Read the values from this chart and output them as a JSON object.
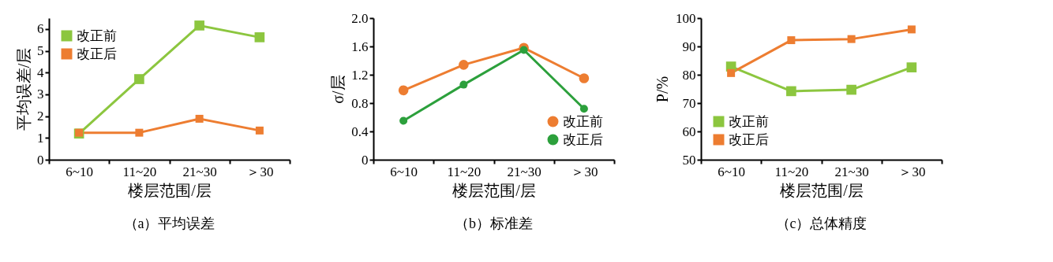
{
  "chart_data": [
    {
      "type": "line",
      "title": "（a）平均误差",
      "xlabel": "楼层范围/层",
      "ylabel": "平均误差/层",
      "categories": [
        "6~10",
        "11~20",
        "21~30",
        "＞30"
      ],
      "ylim": [
        0,
        6.5
      ],
      "yticks": [
        0,
        1,
        2,
        3,
        4,
        5,
        6
      ],
      "legend": "top left",
      "marker": "square",
      "series": [
        {
          "name": "改正前",
          "color": "#8cc63f",
          "values": [
            1.2,
            3.7,
            6.16,
            5.62
          ]
        },
        {
          "name": "改正后",
          "color": "#ed7d31",
          "values": [
            1.24,
            1.24,
            1.88,
            1.34
          ]
        }
      ]
    },
    {
      "type": "line",
      "title": "（b）标准差",
      "xlabel": "楼层范围/层",
      "ylabel": "σ/层",
      "categories": [
        "6~10",
        "11~20",
        "21~30",
        "＞30"
      ],
      "ylim": [
        0,
        2.0
      ],
      "yticks": [
        0,
        0.4,
        0.8,
        1.2,
        1.6,
        {
          "value": 2,
          "label": "2.0"
        }
      ],
      "legend": "bottom right",
      "marker": "circle",
      "series": [
        {
          "name": "改正前",
          "color": "#ed7d31",
          "values": [
            0.98,
            1.34,
            1.58,
            1.15
          ]
        },
        {
          "name": "改正后",
          "color": "#2ca03c",
          "values": [
            0.55,
            1.06,
            1.55,
            0.72
          ]
        }
      ]
    },
    {
      "type": "line",
      "title": "（c）总体精度",
      "xlabel": "楼层范围/层",
      "ylabel": "P/%",
      "categories": [
        "6~10",
        "11~20",
        "21~30",
        "＞30"
      ],
      "ylim": [
        50,
        100
      ],
      "yticks": [
        50,
        60,
        70,
        80,
        90,
        100
      ],
      "legend": "bottom left",
      "marker": "square",
      "series": [
        {
          "name": "改正前",
          "color": "#8cc63f",
          "values": [
            82.9,
            74.2,
            74.7,
            82.6
          ]
        },
        {
          "name": "改正后",
          "color": "#ed7d31",
          "values": [
            80.6,
            92.2,
            92.6,
            96.0
          ]
        }
      ]
    }
  ]
}
